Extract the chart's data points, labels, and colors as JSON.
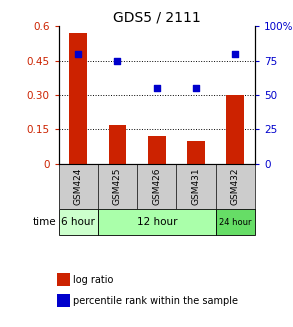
{
  "title": "GDS5 / 2111",
  "samples": [
    "GSM424",
    "GSM425",
    "GSM426",
    "GSM431",
    "GSM432"
  ],
  "log_ratio": [
    0.57,
    0.17,
    0.12,
    0.1,
    0.3
  ],
  "percentile_rank": [
    80,
    75,
    55,
    55,
    80
  ],
  "bar_color": "#cc2200",
  "scatter_color": "#0000cc",
  "left_ylim": [
    0,
    0.6
  ],
  "left_yticks": [
    0,
    0.15,
    0.3,
    0.45,
    0.6
  ],
  "right_ylim": [
    0,
    100
  ],
  "right_yticks": [
    0,
    25,
    50,
    75,
    100
  ],
  "right_yticklabels": [
    "0",
    "25",
    "50",
    "75",
    "100%"
  ],
  "left_yticklabels": [
    "0",
    "0.15",
    "0.30",
    "0.45",
    "0.6"
  ],
  "background_color": "#ffffff",
  "plot_bg_color": "#ffffff",
  "sample_bg_color": "#cccccc",
  "time_groups": [
    {
      "label": "6 hour",
      "start": 0,
      "end": 0,
      "color": "#ccffcc"
    },
    {
      "label": "12 hour",
      "start": 1,
      "end": 3,
      "color": "#aaffaa"
    },
    {
      "label": "24 hour",
      "start": 4,
      "end": 4,
      "color": "#66dd66"
    }
  ],
  "legend_items": [
    {
      "label": "log ratio",
      "color": "#cc2200"
    },
    {
      "label": "percentile rank within the sample",
      "color": "#0000cc"
    }
  ]
}
